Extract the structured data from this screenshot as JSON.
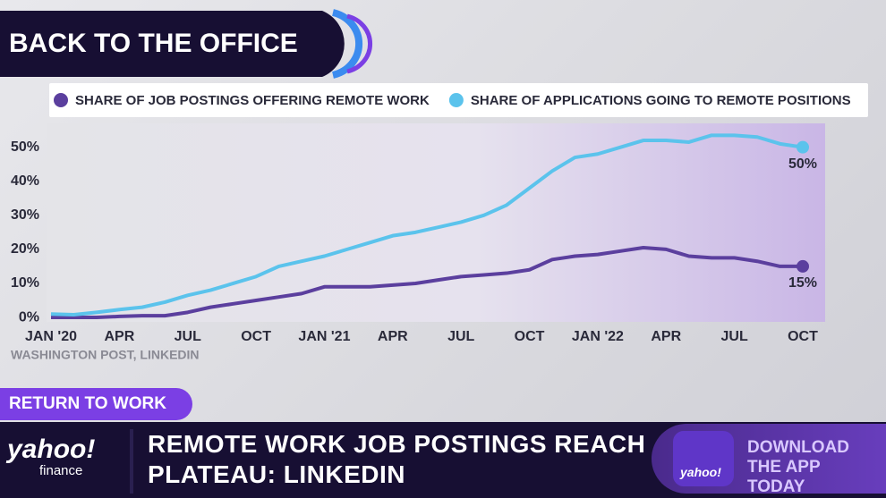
{
  "chart_data": {
    "type": "line",
    "title": "BACK TO THE OFFICE",
    "source": "WASHINGTON POST, LINKEDIN",
    "categories": [
      "JAN '20",
      null,
      null,
      "APR",
      null,
      null,
      "JUL",
      null,
      null,
      "OCT",
      null,
      null,
      "JAN '21",
      null,
      null,
      "APR",
      null,
      null,
      "JUL",
      null,
      null,
      "OCT",
      null,
      null,
      "JAN '22",
      null,
      null,
      "APR",
      null,
      null,
      "JUL",
      null,
      null,
      "OCT"
    ],
    "series": [
      {
        "name": "SHARE OF JOB POSTINGS OFFERING REMOTE WORK",
        "color": "#5b3f9e",
        "values": [
          0,
          0,
          0,
          0.3,
          0.5,
          0.5,
          1.5,
          3,
          4,
          5,
          6,
          7,
          9,
          9,
          9,
          9.5,
          10,
          11,
          12,
          12.5,
          13,
          14,
          17,
          18,
          18.5,
          19.5,
          20.5,
          20,
          18,
          17.5,
          17.5,
          16.5,
          15,
          15
        ],
        "end_label": "15%"
      },
      {
        "name": "SHARE OF APPLICATIONS GOING TO REMOTE POSITIONS",
        "color": "#5bc3ec",
        "values": [
          1,
          0.8,
          1.5,
          2.3,
          3,
          4.5,
          6.5,
          8,
          10,
          12,
          15,
          16.5,
          18,
          20,
          22,
          24,
          25,
          26.5,
          28,
          30,
          33,
          38,
          43,
          47,
          48,
          50,
          52,
          52,
          51.5,
          53.5,
          53.5,
          53,
          51,
          50
        ],
        "end_label": "50%"
      }
    ],
    "ylim": [
      -1.3,
      57
    ],
    "yticks": [
      {
        "value": 0,
        "label": "0%"
      },
      {
        "value": 10,
        "label": "10%"
      },
      {
        "value": 20,
        "label": "20%"
      },
      {
        "value": 30,
        "label": "30%"
      },
      {
        "value": 40,
        "label": "40%"
      },
      {
        "value": 50,
        "label": "50%"
      }
    ],
    "legend": "top"
  },
  "broadcast": {
    "tag": "RETURN TO WORK",
    "headline": "REMOTE WORK JOB POSTINGS REACH PLATEAU: LINKEDIN",
    "logo_main": "yahoo!",
    "logo_sub": "finance",
    "promo": "DOWNLOAD THE APP TODAY",
    "promo_icon": "yahoo!"
  }
}
